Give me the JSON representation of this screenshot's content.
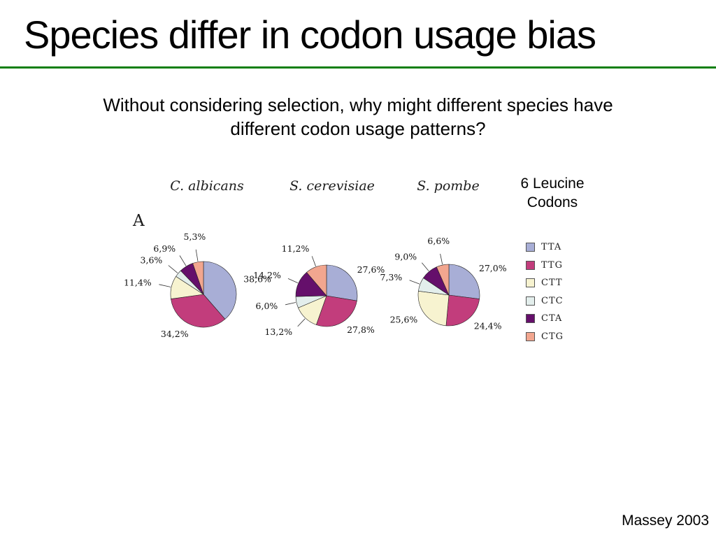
{
  "slide": {
    "title": "Species differ in codon usage bias",
    "question_line1": "Without considering selection, why might different species have",
    "question_line2": "different codon usage patterns?",
    "citation": "Massey 2003",
    "divider_color": "#0e7f0e"
  },
  "figure": {
    "panel_label": "A",
    "legend_title_line1": "6 Leucine",
    "legend_title_line2": "Codons"
  },
  "chart_data": {
    "type": "pie",
    "legend_title": "6 Leucine Codons",
    "legend_position": "right",
    "categories": [
      "TTA",
      "TTG",
      "CTT",
      "CTC",
      "CTA",
      "CTG"
    ],
    "colors": [
      "#a8aed6",
      "#c23d7c",
      "#f7f3d0",
      "#e3eeec",
      "#650f6b",
      "#f2a68f"
    ],
    "charts": [
      {
        "title": "C. albicans",
        "values": [
          38.6,
          34.2,
          11.4,
          3.6,
          6.9,
          5.3
        ],
        "labels": [
          "38,6%",
          "34,2%",
          "11,4%",
          "3,6%",
          "6,9%",
          "5,3%"
        ]
      },
      {
        "title": "S. cerevisiae",
        "values": [
          27.6,
          27.8,
          13.2,
          6.0,
          14.2,
          11.2
        ],
        "labels": [
          "27,6%",
          "27,8%",
          "13,2%",
          "6,0%",
          "14,2%",
          "11,2%"
        ]
      },
      {
        "title": "S. pombe",
        "values": [
          27.0,
          24.4,
          25.6,
          7.3,
          9.0,
          6.6
        ],
        "labels": [
          "27,0%",
          "24,4%",
          "25,6%",
          "7,3%",
          "9,0%",
          "6,6%"
        ]
      }
    ]
  }
}
